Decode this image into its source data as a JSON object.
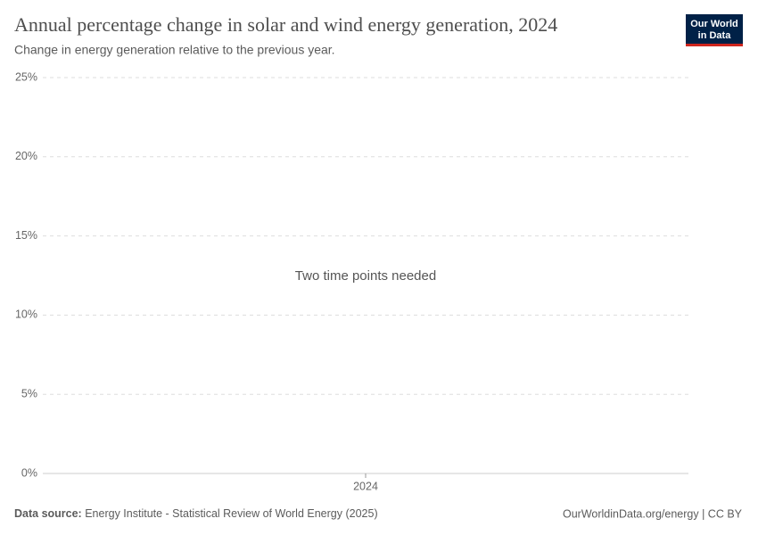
{
  "chart_data": {
    "type": "line",
    "title": "Annual percentage change in solar and wind energy generation, 2024",
    "subtitle": "Change in energy generation relative to the previous year.",
    "annotation": "Two time points needed",
    "xticks": [
      2024
    ],
    "ylim": [
      0,
      25
    ],
    "yticks": [
      {
        "value": 0,
        "label": "0%"
      },
      {
        "value": 5,
        "label": "5%"
      },
      {
        "value": 10,
        "label": "10%"
      },
      {
        "value": 15,
        "label": "15%"
      },
      {
        "value": 20,
        "label": "20%"
      },
      {
        "value": 25,
        "label": "25%"
      }
    ],
    "grid": true,
    "source_label": "Data source:",
    "source": "Energy Institute - Statistical Review of World Energy (2025)",
    "footer_right": "OurWorldinData.org/energy | CC BY",
    "logo": [
      "Our World",
      "in Data"
    ]
  }
}
